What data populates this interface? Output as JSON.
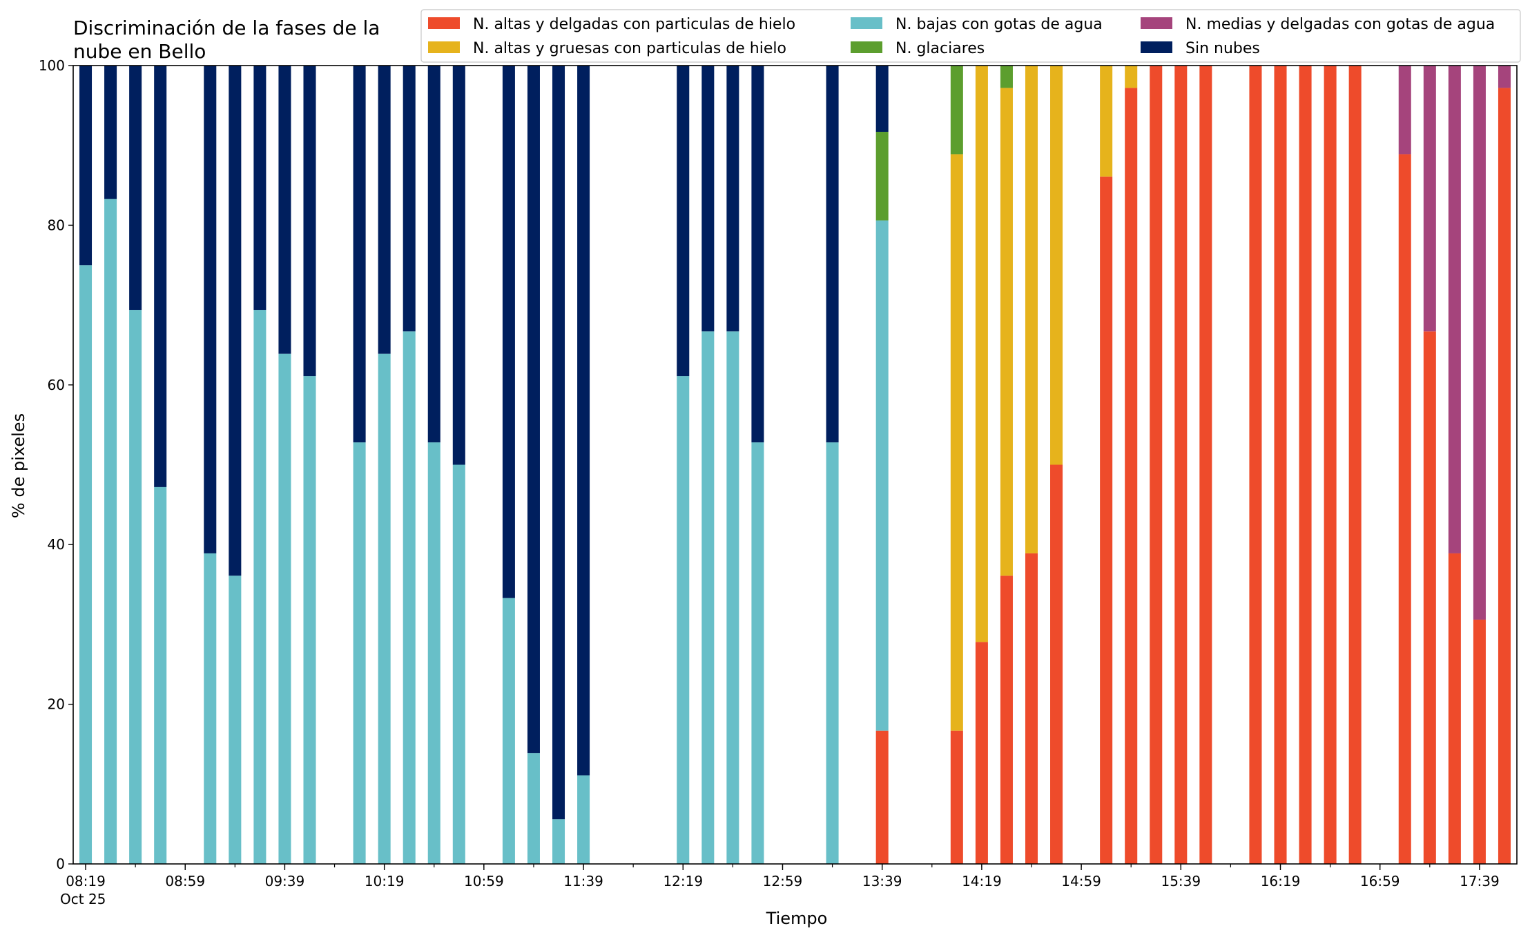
{
  "chart_data": {
    "type": "bar",
    "stacked": true,
    "title_lines": [
      "Discriminación de la fases de la",
      "nube en Bello"
    ],
    "xlabel": "Tiempo",
    "ylabel": "% de pixeles",
    "ylim": [
      0,
      100
    ],
    "yticks": [
      "0",
      "20",
      "40",
      "60",
      "80",
      "100"
    ],
    "xlim": [
      "08:14",
      "17:54"
    ],
    "bar_minutes": 5,
    "xtick_labels": [
      {
        "time": "08:19",
        "label": "08:19",
        "sublabel": "Oct 25"
      },
      {
        "time": "08:59",
        "label": "08:59"
      },
      {
        "time": "09:39",
        "label": "09:39"
      },
      {
        "time": "10:19",
        "label": "10:19"
      },
      {
        "time": "10:59",
        "label": "10:59"
      },
      {
        "time": "11:39",
        "label": "11:39"
      },
      {
        "time": "12:19",
        "label": "12:19"
      },
      {
        "time": "12:59",
        "label": "12:59"
      },
      {
        "time": "13:39",
        "label": "13:39"
      },
      {
        "time": "14:19",
        "label": "14:19"
      },
      {
        "time": "14:59",
        "label": "14:59"
      },
      {
        "time": "15:39",
        "label": "15:39"
      },
      {
        "time": "16:19",
        "label": "16:19"
      },
      {
        "time": "16:59",
        "label": "16:59"
      },
      {
        "time": "17:39",
        "label": "17:39"
      }
    ],
    "legend_placement": "top-right",
    "series": [
      {
        "name": "N. altas y delgadas con particulas de hielo",
        "color": "#ee4b2b"
      },
      {
        "name": "N. altas y gruesas con particulas de hielo",
        "color": "#e6b31c"
      },
      {
        "name": "N. bajas con gotas de agua",
        "color": "#68bfc8"
      },
      {
        "name": "N. glaciares",
        "color": "#5c9e2e"
      },
      {
        "name": "N. medias y delgadas con gotas de agua",
        "color": "#a5447c"
      },
      {
        "name": "Sin nubes",
        "color": "#001f5e"
      }
    ],
    "bars": [
      {
        "time": "08:19",
        "values": [
          0,
          0,
          75,
          0,
          0,
          25
        ]
      },
      {
        "time": "08:29",
        "values": [
          0,
          0,
          83.3,
          0,
          0,
          16.7
        ]
      },
      {
        "time": "08:39",
        "values": [
          0,
          0,
          69.4,
          0,
          0,
          30.6
        ]
      },
      {
        "time": "08:49",
        "values": [
          0,
          0,
          47.2,
          0,
          0,
          52.8
        ]
      },
      {
        "time": "09:09",
        "values": [
          0,
          0,
          38.9,
          0,
          0,
          61.1
        ]
      },
      {
        "time": "09:19",
        "values": [
          0,
          0,
          36.1,
          0,
          0,
          63.9
        ]
      },
      {
        "time": "09:29",
        "values": [
          0,
          0,
          69.4,
          0,
          0,
          30.6
        ]
      },
      {
        "time": "09:39",
        "values": [
          0,
          0,
          63.9,
          0,
          0,
          36.1
        ]
      },
      {
        "time": "09:49",
        "values": [
          0,
          0,
          61.1,
          0,
          0,
          38.9
        ]
      },
      {
        "time": "10:09",
        "values": [
          0,
          0,
          52.8,
          0,
          0,
          47.2
        ]
      },
      {
        "time": "10:19",
        "values": [
          0,
          0,
          63.9,
          0,
          0,
          36.1
        ]
      },
      {
        "time": "10:29",
        "values": [
          0,
          0,
          66.7,
          0,
          0,
          33.3
        ]
      },
      {
        "time": "10:39",
        "values": [
          0,
          0,
          52.8,
          0,
          0,
          47.2
        ]
      },
      {
        "time": "10:49",
        "values": [
          0,
          0,
          50,
          0,
          0,
          50
        ]
      },
      {
        "time": "11:09",
        "values": [
          0,
          0,
          33.3,
          0,
          0,
          66.7
        ]
      },
      {
        "time": "11:19",
        "values": [
          0,
          0,
          13.9,
          0,
          0,
          86.1
        ]
      },
      {
        "time": "11:29",
        "values": [
          0,
          0,
          5.6,
          0,
          0,
          94.4
        ]
      },
      {
        "time": "11:39",
        "values": [
          0,
          0,
          11.1,
          0,
          0,
          88.9
        ]
      },
      {
        "time": "12:19",
        "values": [
          0,
          0,
          61.1,
          0,
          0,
          38.9
        ]
      },
      {
        "time": "12:29",
        "values": [
          0,
          0,
          66.7,
          0,
          0,
          33.3
        ]
      },
      {
        "time": "12:39",
        "values": [
          0,
          0,
          66.7,
          0,
          0,
          33.3
        ]
      },
      {
        "time": "12:49",
        "values": [
          0,
          0,
          52.8,
          0,
          0,
          47.2
        ]
      },
      {
        "time": "13:19",
        "values": [
          0,
          0,
          52.8,
          0,
          0,
          47.2
        ]
      },
      {
        "time": "13:39",
        "values": [
          16.7,
          0,
          63.9,
          11.1,
          0,
          8.3
        ]
      },
      {
        "time": "14:09",
        "values": [
          16.7,
          72.2,
          0,
          11.1,
          0,
          0
        ]
      },
      {
        "time": "14:19",
        "values": [
          27.8,
          72.2,
          0,
          0,
          0,
          0
        ]
      },
      {
        "time": "14:29",
        "values": [
          36.1,
          61.1,
          0,
          2.8,
          0,
          0
        ]
      },
      {
        "time": "14:39",
        "values": [
          38.9,
          61.1,
          0,
          0,
          0,
          0
        ]
      },
      {
        "time": "14:49",
        "values": [
          50,
          50,
          0,
          0,
          0,
          0
        ]
      },
      {
        "time": "15:09",
        "values": [
          86.1,
          13.9,
          0,
          0,
          0,
          0
        ]
      },
      {
        "time": "15:19",
        "values": [
          97.2,
          2.8,
          0,
          0,
          0,
          0
        ]
      },
      {
        "time": "15:29",
        "values": [
          100,
          0,
          0,
          0,
          0,
          0
        ]
      },
      {
        "time": "15:39",
        "values": [
          100,
          0,
          0,
          0,
          0,
          0
        ]
      },
      {
        "time": "15:49",
        "values": [
          100,
          0,
          0,
          0,
          0,
          0
        ]
      },
      {
        "time": "16:09",
        "values": [
          100,
          0,
          0,
          0,
          0,
          0
        ]
      },
      {
        "time": "16:19",
        "values": [
          100,
          0,
          0,
          0,
          0,
          0
        ]
      },
      {
        "time": "16:29",
        "values": [
          100,
          0,
          0,
          0,
          0,
          0
        ]
      },
      {
        "time": "16:39",
        "values": [
          100,
          0,
          0,
          0,
          0,
          0
        ]
      },
      {
        "time": "16:49",
        "values": [
          100,
          0,
          0,
          0,
          0,
          0
        ]
      },
      {
        "time": "17:09",
        "values": [
          88.9,
          0,
          0,
          0,
          11.1,
          0
        ]
      },
      {
        "time": "17:19",
        "values": [
          66.7,
          0,
          0,
          0,
          33.3,
          0
        ]
      },
      {
        "time": "17:29",
        "values": [
          38.9,
          0,
          0,
          0,
          61.1,
          0
        ]
      },
      {
        "time": "17:39",
        "values": [
          30.6,
          0,
          0,
          0,
          69.4,
          0
        ]
      },
      {
        "time": "17:49",
        "values": [
          97.2,
          0,
          0,
          0,
          2.8,
          0
        ]
      }
    ]
  }
}
